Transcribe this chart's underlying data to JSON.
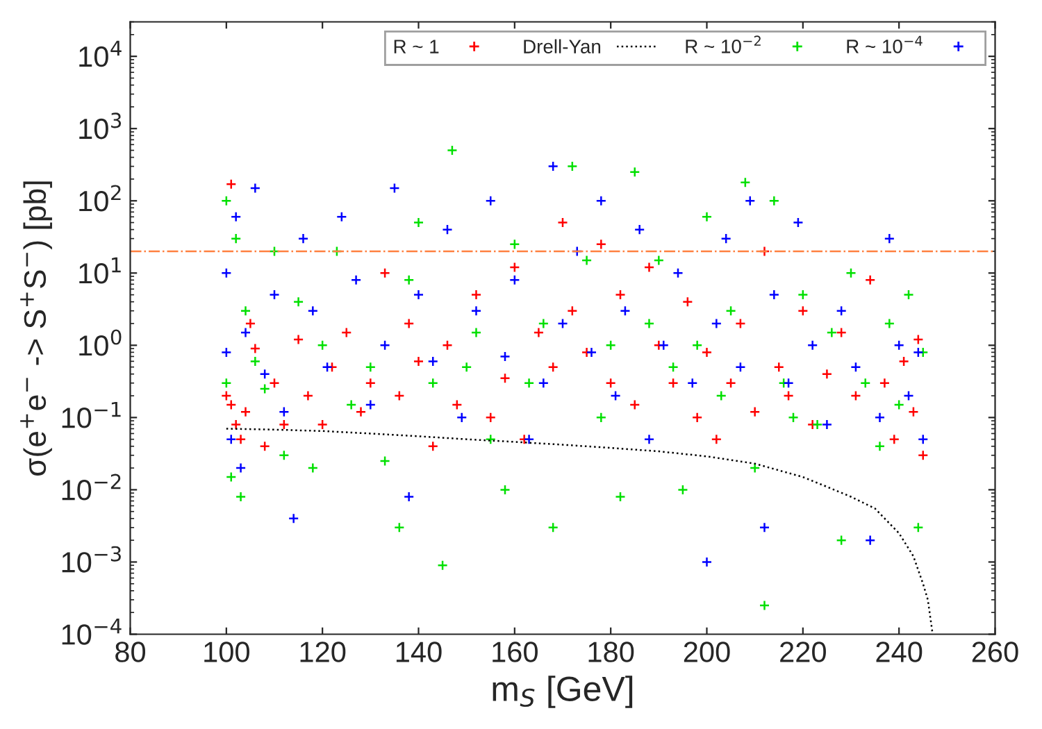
{
  "chart_data": {
    "type": "scatter",
    "xlabel": "m$_{S}$ [GeV]",
    "ylabel": "σ(e$^{+}$e$^{−}$ -> S$^{+}$S$^{−}$) [pb]",
    "xlim": [
      80,
      260
    ],
    "xticks": [
      80,
      100,
      120,
      140,
      160,
      180,
      200,
      220,
      240,
      260
    ],
    "ylim": [
      0.0001,
      30000
    ],
    "log": "y",
    "yticks": [
      {
        "value": 0.0001,
        "label": "10$^{−4}$"
      },
      {
        "value": 0.001,
        "label": "10$^{−3}$"
      },
      {
        "value": 0.01,
        "label": "10$^{−2}$"
      },
      {
        "value": 0.1,
        "label": "10$^{−1}$"
      },
      {
        "value": 1,
        "label": "10$^{0}$"
      },
      {
        "value": 10,
        "label": "10$^{1}$"
      },
      {
        "value": 100,
        "label": "10$^{2}$"
      },
      {
        "value": 1000,
        "label": "10$^{3}$"
      },
      {
        "value": 10000,
        "label": "10$^{4}$"
      }
    ],
    "marker": "cross",
    "grid": false,
    "legend": "top right",
    "ref_lines": [
      {
        "axis": "y",
        "value": 20,
        "color": "#ff8040",
        "line_style": "dashdot"
      }
    ],
    "series": [
      {
        "name": "R ~ 1",
        "color": "#ff0000",
        "x": [
          100,
          101,
          101,
          102,
          103,
          104,
          105,
          106,
          108,
          110,
          112,
          115,
          117,
          120,
          122,
          125,
          128,
          130,
          133,
          136,
          138,
          140,
          143,
          146,
          148,
          152,
          155,
          158,
          160,
          162,
          165,
          168,
          170,
          172,
          175,
          178,
          180,
          182,
          185,
          188,
          190,
          193,
          196,
          198,
          200,
          202,
          205,
          207,
          210,
          212,
          215,
          217,
          220,
          222,
          225,
          228,
          231,
          234,
          237,
          239,
          241,
          243,
          244,
          245
        ],
        "values": [
          0.2,
          170,
          0.15,
          0.08,
          0.05,
          0.12,
          2,
          0.9,
          0.04,
          0.3,
          0.08,
          1.2,
          0.2,
          0.08,
          0.5,
          1.5,
          0.12,
          0.3,
          10,
          0.2,
          2,
          0.6,
          0.04,
          1,
          0.15,
          5,
          0.1,
          0.35,
          12,
          0.05,
          1.5,
          0.5,
          50,
          3,
          0.8,
          25,
          0.3,
          5,
          0.15,
          12,
          1,
          0.3,
          4,
          0.1,
          0.8,
          0.05,
          0.3,
          2,
          0.12,
          20,
          0.5,
          0.2,
          3,
          0.08,
          0.4,
          1.5,
          0.2,
          8,
          0.3,
          0.05,
          0.6,
          0.12,
          1.2,
          0.03
        ]
      },
      {
        "name": "Drell-Yan",
        "type": "line",
        "color": "#000000",
        "line_style": "dotted",
        "marker": "none",
        "x": [
          100,
          110,
          120,
          130,
          140,
          150,
          160,
          170,
          180,
          190,
          200,
          210,
          220,
          225,
          230,
          235,
          240,
          243,
          245,
          246,
          247
        ],
        "values": [
          0.07,
          0.068,
          0.065,
          0.06,
          0.055,
          0.05,
          0.046,
          0.042,
          0.038,
          0.034,
          0.029,
          0.023,
          0.015,
          0.011,
          0.008,
          0.0055,
          0.0025,
          0.0012,
          0.0005,
          0.0003,
          0.0001
        ]
      },
      {
        "name": "R ~ 10$^{−2}$",
        "color": "#00e000",
        "x": [
          100,
          100,
          101,
          102,
          103,
          104,
          106,
          108,
          110,
          112,
          115,
          118,
          120,
          123,
          126,
          130,
          133,
          136,
          138,
          140,
          143,
          145,
          147,
          150,
          152,
          155,
          158,
          160,
          163,
          166,
          168,
          172,
          175,
          178,
          180,
          182,
          185,
          188,
          190,
          193,
          195,
          198,
          200,
          203,
          205,
          208,
          210,
          212,
          214,
          216,
          218,
          220,
          223,
          226,
          228,
          230,
          233,
          236,
          238,
          240,
          242,
          244,
          245
        ],
        "values": [
          100,
          0.3,
          0.015,
          30,
          0.008,
          3,
          0.6,
          0.25,
          20,
          0.03,
          4,
          0.02,
          1,
          20,
          0.15,
          0.5,
          0.025,
          0.003,
          8,
          50,
          0.3,
          0.0009,
          500,
          0.5,
          1.5,
          0.05,
          0.01,
          25,
          0.3,
          2,
          0.003,
          300,
          15,
          0.1,
          1,
          0.008,
          250,
          2,
          15,
          0.5,
          0.01,
          1,
          60,
          0.2,
          3,
          180,
          0.02,
          0.00025,
          100,
          0.3,
          0.1,
          5,
          0.08,
          1.5,
          0.002,
          10,
          0.3,
          0.04,
          2,
          0.15,
          5,
          0.003,
          0.8
        ]
      },
      {
        "name": "R ~ 10$^{−4}$",
        "color": "#0000ff",
        "x": [
          100,
          100,
          101,
          102,
          103,
          104,
          106,
          108,
          110,
          112,
          114,
          116,
          118,
          121,
          124,
          127,
          130,
          133,
          135,
          138,
          140,
          143,
          146,
          149,
          152,
          155,
          158,
          160,
          163,
          166,
          168,
          170,
          173,
          176,
          178,
          181,
          183,
          186,
          188,
          191,
          194,
          197,
          200,
          202,
          204,
          207,
          209,
          212,
          214,
          217,
          219,
          222,
          225,
          228,
          231,
          234,
          236,
          238,
          240,
          242,
          244,
          245
        ],
        "values": [
          0.8,
          10,
          0.05,
          60,
          0.02,
          1.5,
          150,
          0.4,
          5,
          0.12,
          0.004,
          30,
          3,
          0.5,
          60,
          8,
          0.15,
          1,
          150,
          0.008,
          5,
          0.6,
          40,
          0.1,
          3,
          100,
          0.7,
          8,
          0.05,
          0.3,
          300,
          2,
          20,
          0.8,
          100,
          0.2,
          3,
          40,
          0.05,
          1,
          10,
          0.3,
          0.001,
          2,
          30,
          0.5,
          100,
          0.003,
          5,
          0.3,
          50,
          1,
          0.08,
          3,
          0.5,
          0.002,
          0.1,
          30,
          1,
          0.2,
          0.8,
          0.05
        ]
      }
    ]
  }
}
